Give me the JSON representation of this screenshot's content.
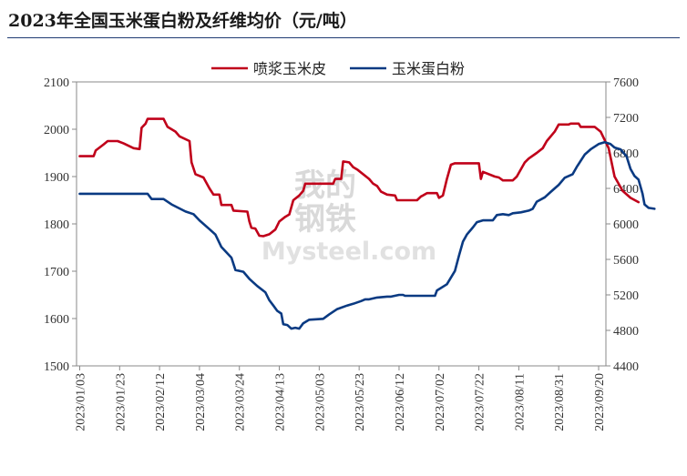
{
  "title": "2023年全国玉米蛋白粉及纤维均价（元/吨）",
  "watermark": {
    "line1": "我的",
    "line2": "钢铁",
    "line3": "Mysteel.com"
  },
  "colors": {
    "red": "#c0001a",
    "blue": "#0a3a82",
    "axis": "#888888",
    "rule": "#1f3b73"
  },
  "chart_data": {
    "type": "line",
    "title": "2023年全国玉米蛋白粉及纤维均价（元/吨）",
    "legend_position": "top-right",
    "grid": false,
    "x_tick_labels": [
      "2023/01/03",
      "2023/01/23",
      "2023/02/12",
      "2023/03/04",
      "2023/03/24",
      "2023/04/13",
      "2023/05/03",
      "2023/05/23",
      "2023/06/12",
      "2023/07/02",
      "2023/07/22",
      "2023/08/11",
      "2023/08/31",
      "2023/09/20"
    ],
    "y_left": {
      "min": 1500,
      "max": 2100,
      "ticks": [
        "1500",
        "1600",
        "1700",
        "1800",
        "1900",
        "2000",
        "2100"
      ]
    },
    "y_right": {
      "min": 4400,
      "max": 7600,
      "ticks": [
        "4400",
        "4800",
        "5200",
        "5600",
        "6000",
        "6400",
        "6800",
        "7200",
        "7600"
      ]
    },
    "series": [
      {
        "name": "喷浆玉米皮",
        "axis": "left",
        "color": "#c0001a",
        "points": [
          [
            "2023/01/03",
            1943
          ],
          [
            "2023/01/10",
            1943
          ],
          [
            "2023/01/11",
            1955
          ],
          [
            "2023/01/15",
            1968
          ],
          [
            "2023/01/17",
            1975
          ],
          [
            "2023/01/22",
            1975
          ],
          [
            "2023/01/25",
            1970
          ],
          [
            "2023/01/30",
            1960
          ],
          [
            "2023/02/02",
            1958
          ],
          [
            "2023/02/03",
            2003
          ],
          [
            "2023/02/05",
            2012
          ],
          [
            "2023/02/06",
            2022
          ],
          [
            "2023/02/14",
            2022
          ],
          [
            "2023/02/16",
            2005
          ],
          [
            "2023/02/20",
            1995
          ],
          [
            "2023/02/22",
            1985
          ],
          [
            "2023/02/27",
            1975
          ],
          [
            "2023/02/28",
            1930
          ],
          [
            "2023/03/02",
            1905
          ],
          [
            "2023/03/06",
            1898
          ],
          [
            "2023/03/09",
            1875
          ],
          [
            "2023/03/11",
            1862
          ],
          [
            "2023/03/14",
            1862
          ],
          [
            "2023/03/15",
            1840
          ],
          [
            "2023/03/20",
            1840
          ],
          [
            "2023/03/21",
            1828
          ],
          [
            "2023/03/28",
            1826
          ],
          [
            "2023/03/29",
            1805
          ],
          [
            "2023/03/30",
            1792
          ],
          [
            "2023/04/01",
            1790
          ],
          [
            "2023/04/03",
            1775
          ],
          [
            "2023/04/05",
            1774
          ],
          [
            "2023/04/08",
            1778
          ],
          [
            "2023/04/11",
            1788
          ],
          [
            "2023/04/13",
            1805
          ],
          [
            "2023/04/16",
            1815
          ],
          [
            "2023/04/18",
            1820
          ],
          [
            "2023/04/20",
            1850
          ],
          [
            "2023/04/23",
            1860
          ],
          [
            "2023/04/25",
            1870
          ],
          [
            "2023/04/26",
            1885
          ],
          [
            "2023/05/10",
            1885
          ],
          [
            "2023/05/11",
            1895
          ],
          [
            "2023/05/14",
            1895
          ],
          [
            "2023/05/15",
            1932
          ],
          [
            "2023/05/18",
            1930
          ],
          [
            "2023/05/20",
            1920
          ],
          [
            "2023/05/22",
            1915
          ],
          [
            "2023/05/28",
            1895
          ],
          [
            "2023/05/30",
            1885
          ],
          [
            "2023/06/01",
            1880
          ],
          [
            "2023/06/03",
            1868
          ],
          [
            "2023/06/06",
            1862
          ],
          [
            "2023/06/10",
            1860
          ],
          [
            "2023/06/11",
            1850
          ],
          [
            "2023/06/21",
            1850
          ],
          [
            "2023/06/23",
            1858
          ],
          [
            "2023/06/24",
            1860
          ],
          [
            "2023/06/26",
            1865
          ],
          [
            "2023/07/01",
            1865
          ],
          [
            "2023/07/02",
            1855
          ],
          [
            "2023/07/04",
            1860
          ],
          [
            "2023/07/06",
            1895
          ],
          [
            "2023/07/08",
            1925
          ],
          [
            "2023/07/10",
            1928
          ],
          [
            "2023/07/22",
            1928
          ],
          [
            "2023/07/23",
            1895
          ],
          [
            "2023/07/24",
            1910
          ],
          [
            "2023/07/30",
            1900
          ],
          [
            "2023/08/01",
            1898
          ],
          [
            "2023/08/03",
            1892
          ],
          [
            "2023/08/08",
            1892
          ],
          [
            "2023/08/10",
            1900
          ],
          [
            "2023/08/14",
            1930
          ],
          [
            "2023/08/16",
            1938
          ],
          [
            "2023/08/20",
            1950
          ],
          [
            "2023/08/23",
            1960
          ],
          [
            "2023/08/25",
            1975
          ],
          [
            "2023/08/29",
            1995
          ],
          [
            "2023/08/31",
            2010
          ],
          [
            "2023/09/05",
            2010
          ],
          [
            "2023/09/06",
            2012
          ],
          [
            "2023/09/10",
            2012
          ],
          [
            "2023/09/11",
            2005
          ],
          [
            "2023/09/18",
            2005
          ],
          [
            "2023/09/21",
            1995
          ],
          [
            "2023/09/25",
            1960
          ],
          [
            "2023/09/28",
            1900
          ],
          [
            "2023/10/02",
            1870
          ],
          [
            "2023/10/06",
            1855
          ],
          [
            "2023/10/10",
            1846
          ]
        ]
      },
      {
        "name": "玉米蛋白粉",
        "axis": "right",
        "color": "#0a3a82",
        "points": [
          [
            "2023/01/03",
            6340
          ],
          [
            "2023/02/06",
            6340
          ],
          [
            "2023/02/08",
            6280
          ],
          [
            "2023/02/14",
            6280
          ],
          [
            "2023/02/18",
            6220
          ],
          [
            "2023/02/25",
            6140
          ],
          [
            "2023/03/01",
            6110
          ],
          [
            "2023/03/04",
            6040
          ],
          [
            "2023/03/09",
            5940
          ],
          [
            "2023/03/12",
            5880
          ],
          [
            "2023/03/15",
            5740
          ],
          [
            "2023/03/20",
            5620
          ],
          [
            "2023/03/22",
            5480
          ],
          [
            "2023/03/26",
            5460
          ],
          [
            "2023/03/29",
            5380
          ],
          [
            "2023/04/02",
            5300
          ],
          [
            "2023/04/06",
            5230
          ],
          [
            "2023/04/08",
            5140
          ],
          [
            "2023/04/10",
            5080
          ],
          [
            "2023/04/12",
            5020
          ],
          [
            "2023/04/14",
            4990
          ],
          [
            "2023/04/15",
            4870
          ],
          [
            "2023/04/17",
            4860
          ],
          [
            "2023/04/19",
            4820
          ],
          [
            "2023/04/21",
            4830
          ],
          [
            "2023/04/23",
            4820
          ],
          [
            "2023/04/25",
            4880
          ],
          [
            "2023/04/28",
            4920
          ],
          [
            "2023/05/05",
            4930
          ],
          [
            "2023/05/08",
            4980
          ],
          [
            "2023/05/12",
            5040
          ],
          [
            "2023/05/17",
            5080
          ],
          [
            "2023/05/20",
            5100
          ],
          [
            "2023/05/24",
            5130
          ],
          [
            "2023/05/26",
            5150
          ],
          [
            "2023/05/28",
            5150
          ],
          [
            "2023/06/01",
            5170
          ],
          [
            "2023/06/06",
            5180
          ],
          [
            "2023/06/08",
            5180
          ],
          [
            "2023/06/12",
            5200
          ],
          [
            "2023/06/14",
            5200
          ],
          [
            "2023/06/15",
            5190
          ],
          [
            "2023/06/30",
            5190
          ],
          [
            "2023/07/01",
            5250
          ],
          [
            "2023/07/06",
            5320
          ],
          [
            "2023/07/10",
            5470
          ],
          [
            "2023/07/12",
            5640
          ],
          [
            "2023/07/14",
            5800
          ],
          [
            "2023/07/16",
            5880
          ],
          [
            "2023/07/19",
            5960
          ],
          [
            "2023/07/21",
            6020
          ],
          [
            "2023/07/24",
            6040
          ],
          [
            "2023/07/29",
            6040
          ],
          [
            "2023/07/31",
            6100
          ],
          [
            "2023/08/03",
            6110
          ],
          [
            "2023/08/06",
            6100
          ],
          [
            "2023/08/08",
            6120
          ],
          [
            "2023/08/12",
            6130
          ],
          [
            "2023/08/16",
            6150
          ],
          [
            "2023/08/18",
            6170
          ],
          [
            "2023/08/20",
            6250
          ],
          [
            "2023/08/24",
            6300
          ],
          [
            "2023/08/27",
            6360
          ],
          [
            "2023/08/31",
            6440
          ],
          [
            "2023/09/03",
            6520
          ],
          [
            "2023/09/07",
            6560
          ],
          [
            "2023/09/09",
            6640
          ],
          [
            "2023/09/13",
            6780
          ],
          [
            "2023/09/16",
            6840
          ],
          [
            "2023/09/20",
            6900
          ],
          [
            "2023/09/23",
            6920
          ],
          [
            "2023/09/26",
            6900
          ],
          [
            "2023/09/28",
            6860
          ],
          [
            "2023/10/01",
            6840
          ],
          [
            "2023/10/04",
            6760
          ],
          [
            "2023/10/06",
            6620
          ],
          [
            "2023/10/08",
            6540
          ],
          [
            "2023/10/10",
            6500
          ],
          [
            "2023/10/12",
            6340
          ],
          [
            "2023/10/13",
            6220
          ],
          [
            "2023/10/15",
            6180
          ],
          [
            "2023/10/18",
            6170
          ]
        ]
      }
    ]
  }
}
